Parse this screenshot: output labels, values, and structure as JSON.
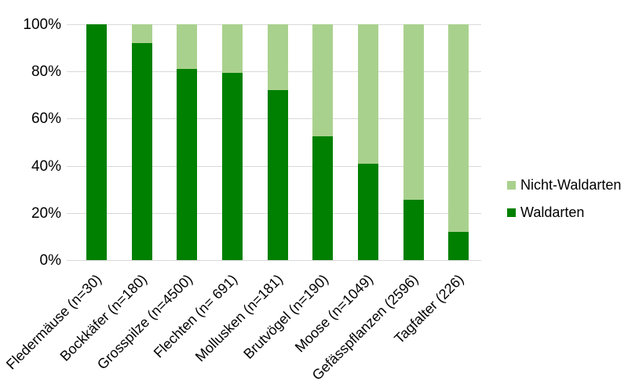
{
  "chart_data": {
    "type": "bar",
    "stacked": true,
    "orientation": "vertical",
    "title": "",
    "xlabel": "",
    "ylabel": "",
    "categories": [
      "Fledermäuse (n=30)",
      "Bockkäfer (n=180)",
      "Grosspilze (n=4500)",
      "Flechten (n= 691)",
      "Mollusken (n=181)",
      "Brutvögel (n=190)",
      "Moose (n=1049)",
      "Gefässpflanzen (2596)",
      "Tagfalter (226)"
    ],
    "series": [
      {
        "name": "Nicht-Waldarten",
        "color": "#a9d18e",
        "values": [
          0,
          8,
          19,
          20.5,
          28,
          47.5,
          59,
          74.5,
          88
        ]
      },
      {
        "name": "Waldarten",
        "color": "#008000",
        "values": [
          100,
          92,
          81,
          79.5,
          72,
          52.5,
          41,
          25.5,
          12
        ]
      }
    ],
    "unit": "%",
    "ylim": [
      0,
      100
    ],
    "yticks": [
      0,
      20,
      40,
      60,
      80,
      100
    ],
    "ytick_labels": [
      "0%",
      "20%",
      "40%",
      "60%",
      "80%",
      "100%"
    ],
    "grid": true,
    "legend_position": "right",
    "legend_order": [
      "Nicht-Waldarten",
      "Waldarten"
    ],
    "colors": {
      "waldarten": "#008000",
      "nicht_waldarten": "#a9d18e",
      "gridline": "#d9d9d9",
      "text": "#000000",
      "background": "#ffffff"
    }
  }
}
